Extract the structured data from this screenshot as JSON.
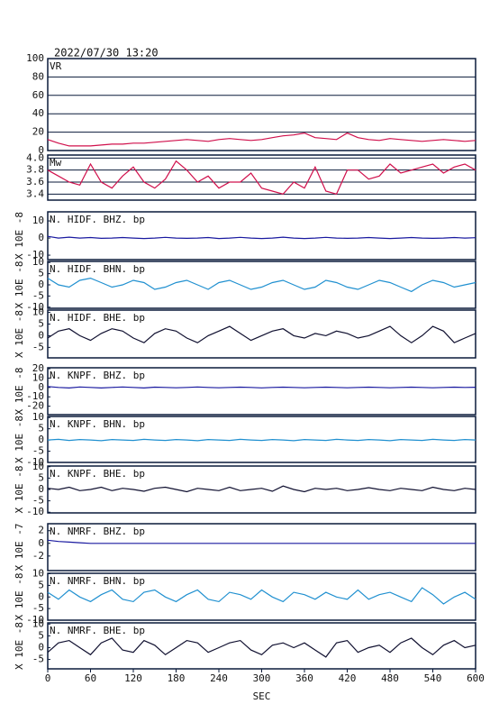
{
  "header": {
    "timestamp": "2022/07/30 13:20"
  },
  "chart_data": [
    {
      "type": "line",
      "title": "VR",
      "grid": true,
      "xlim": [
        0,
        600
      ],
      "ylim": [
        0,
        100
      ],
      "yticks": [
        0,
        20,
        40,
        60,
        80,
        100
      ],
      "x": [
        0,
        15,
        30,
        45,
        60,
        75,
        90,
        105,
        120,
        135,
        150,
        165,
        180,
        195,
        210,
        225,
        240,
        255,
        270,
        285,
        300,
        315,
        330,
        345,
        360,
        375,
        390,
        405,
        420,
        435,
        450,
        465,
        480,
        495,
        510,
        525,
        540,
        555,
        570,
        585,
        600
      ],
      "series": [
        {
          "name": "VR",
          "color": "#d0104c",
          "values": [
            12,
            8,
            5,
            5,
            5,
            6,
            7,
            7,
            8,
            8,
            9,
            10,
            11,
            12,
            11,
            10,
            12,
            13,
            12,
            11,
            12,
            14,
            16,
            17,
            19,
            14,
            13,
            12,
            19,
            14,
            12,
            11,
            13,
            12,
            11,
            10,
            11,
            12,
            11,
            10,
            11
          ]
        }
      ]
    },
    {
      "type": "line",
      "title": "Mw",
      "grid": true,
      "xlim": [
        0,
        600
      ],
      "ylim": [
        3.3,
        4.05
      ],
      "yticks": [
        {
          "value": 3.4,
          "label": "3.4"
        },
        {
          "value": 3.6,
          "label": "3.6"
        },
        {
          "value": 3.8,
          "label": "3.8"
        },
        {
          "value": 4.0,
          "label": "4.0"
        }
      ],
      "x": [
        0,
        15,
        30,
        45,
        60,
        75,
        90,
        105,
        120,
        135,
        150,
        165,
        180,
        195,
        210,
        225,
        240,
        255,
        270,
        285,
        300,
        315,
        330,
        345,
        360,
        375,
        390,
        405,
        420,
        435,
        450,
        465,
        480,
        495,
        510,
        525,
        540,
        555,
        570,
        585,
        600
      ],
      "series": [
        {
          "name": "Mw",
          "color": "#d0104c",
          "values": [
            3.8,
            3.7,
            3.6,
            3.55,
            3.9,
            3.6,
            3.5,
            3.7,
            3.85,
            3.6,
            3.5,
            3.65,
            3.95,
            3.8,
            3.6,
            3.7,
            3.5,
            3.6,
            3.6,
            3.75,
            3.5,
            3.45,
            3.4,
            3.6,
            3.5,
            3.85,
            3.45,
            3.4,
            3.8,
            3.8,
            3.65,
            3.7,
            3.9,
            3.75,
            3.8,
            3.85,
            3.9,
            3.75,
            3.85,
            3.9,
            3.8
          ]
        }
      ]
    },
    {
      "type": "line",
      "title": "N. HIDF. BHZ. bp",
      "y_label": "X 10E -8",
      "xlim": [
        0,
        600
      ],
      "ylim": [
        -12.6,
        15.3
      ],
      "yticks": [
        10,
        0,
        -10
      ],
      "x": [
        0,
        15,
        30,
        45,
        60,
        75,
        90,
        105,
        120,
        135,
        150,
        165,
        180,
        195,
        210,
        225,
        240,
        255,
        270,
        285,
        300,
        315,
        330,
        345,
        360,
        375,
        390,
        405,
        420,
        435,
        450,
        465,
        480,
        495,
        510,
        525,
        540,
        555,
        570,
        585,
        600
      ],
      "series": [
        {
          "name": "N. HIDF. BHZ. bp",
          "color": "#1a1aa0",
          "values": [
            1,
            0,
            0.5,
            0,
            0.3,
            -0.2,
            0,
            0.3,
            0,
            -0.3,
            0,
            0.4,
            0,
            -0.2,
            0,
            0.3,
            -0.3,
            0,
            0.4,
            0,
            -0.3,
            0,
            0.5,
            0,
            -0.3,
            0,
            0.4,
            0,
            -0.2,
            0,
            0.3,
            0,
            -0.3,
            0,
            0.3,
            0,
            -0.2,
            0,
            0.3,
            0,
            0.2
          ]
        }
      ]
    },
    {
      "type": "line",
      "title": "N. HIDF. BHN. bp",
      "y_label": "X 10E -8",
      "xlim": [
        0,
        600
      ],
      "ylim": [
        -10.5,
        10.5
      ],
      "yticks": [
        10,
        5,
        0,
        -5,
        -10
      ],
      "x": [
        0,
        15,
        30,
        45,
        60,
        75,
        90,
        105,
        120,
        135,
        150,
        165,
        180,
        195,
        210,
        225,
        240,
        255,
        270,
        285,
        300,
        315,
        330,
        345,
        360,
        375,
        390,
        405,
        420,
        435,
        450,
        465,
        480,
        495,
        510,
        525,
        540,
        555,
        570,
        585,
        600
      ],
      "series": [
        {
          "name": "N. HIDF. BHN. bp",
          "color": "#2090d0",
          "values": [
            3,
            0,
            -1,
            2,
            3,
            1,
            -1,
            0,
            2,
            1,
            -2,
            -1,
            1,
            2,
            0,
            -2,
            1,
            2,
            0,
            -2,
            -1,
            1,
            2,
            0,
            -2,
            -1,
            2,
            1,
            -1,
            -2,
            0,
            2,
            1,
            -1,
            -3,
            0,
            2,
            1,
            -1,
            0,
            1
          ]
        }
      ]
    },
    {
      "type": "line",
      "title": "N. HIDF. BHE. bp",
      "y_label": "X 10E -8",
      "xlim": [
        0,
        600
      ],
      "ylim": [
        -9.5,
        11
      ],
      "yticks": [
        10,
        5,
        0,
        -5
      ],
      "x": [
        0,
        15,
        30,
        45,
        60,
        75,
        90,
        105,
        120,
        135,
        150,
        165,
        180,
        195,
        210,
        225,
        240,
        255,
        270,
        285,
        300,
        315,
        330,
        345,
        360,
        375,
        390,
        405,
        420,
        435,
        450,
        465,
        480,
        495,
        510,
        525,
        540,
        555,
        570,
        585,
        600
      ],
      "series": [
        {
          "name": "N. HIDF. BHE. bp",
          "color": "#101030",
          "values": [
            -1,
            2,
            3,
            0,
            -2,
            1,
            3,
            2,
            -1,
            -3,
            1,
            3,
            2,
            -1,
            -3,
            0,
            2,
            4,
            1,
            -2,
            0,
            2,
            3,
            0,
            -1,
            1,
            0,
            2,
            1,
            -1,
            0,
            2,
            4,
            0,
            -3,
            0,
            4,
            2,
            -3,
            -1,
            1
          ]
        }
      ]
    },
    {
      "type": "line",
      "title": "N. KNPF. BHZ. bp",
      "y_label": "X 10E -8",
      "xlim": [
        0,
        600
      ],
      "ylim": [
        -29,
        21
      ],
      "yticks": [
        20,
        10,
        0,
        -10,
        -20
      ],
      "x": [
        0,
        15,
        30,
        45,
        60,
        75,
        90,
        105,
        120,
        135,
        150,
        165,
        180,
        195,
        210,
        225,
        240,
        255,
        270,
        285,
        300,
        315,
        330,
        345,
        360,
        375,
        390,
        405,
        420,
        435,
        450,
        465,
        480,
        495,
        510,
        525,
        540,
        555,
        570,
        585,
        600
      ],
      "series": [
        {
          "name": "N. KNPF. BHZ. bp",
          "color": "#1a1aa0",
          "values": [
            1,
            0,
            -0.5,
            0.5,
            0,
            -0.5,
            0,
            0.5,
            0,
            -0.5,
            0.3,
            0,
            -0.3,
            0,
            0.5,
            0,
            -0.3,
            0,
            0.3,
            0,
            -0.4,
            0,
            0.3,
            0,
            -0.3,
            0,
            0.3,
            0,
            -0.3,
            0,
            0.3,
            0,
            -0.3,
            0,
            0.3,
            0,
            -0.3,
            0,
            0.3,
            0,
            0.2
          ]
        }
      ]
    },
    {
      "type": "line",
      "title": "N. KNPF. BHN. bp",
      "y_label": "X 10E -8",
      "xlim": [
        0,
        600
      ],
      "ylim": [
        -10,
        10.5
      ],
      "yticks": [
        10,
        5,
        0,
        -5,
        -10
      ],
      "x": [
        0,
        15,
        30,
        45,
        60,
        75,
        90,
        105,
        120,
        135,
        150,
        165,
        180,
        195,
        210,
        225,
        240,
        255,
        270,
        285,
        300,
        315,
        330,
        345,
        360,
        375,
        390,
        405,
        420,
        435,
        450,
        465,
        480,
        495,
        510,
        525,
        540,
        555,
        570,
        585,
        600
      ],
      "series": [
        {
          "name": "N. KNPF. BHN. bp",
          "color": "#2090d0",
          "values": [
            0,
            0.3,
            -0.2,
            0.2,
            0,
            -0.3,
            0.2,
            0,
            -0.2,
            0.3,
            0,
            -0.2,
            0.2,
            0,
            -0.3,
            0.2,
            0,
            -0.2,
            0.3,
            0,
            -0.2,
            0.2,
            0,
            -0.3,
            0.2,
            0,
            -0.2,
            0.3,
            0,
            -0.2,
            0.2,
            0,
            -0.3,
            0.2,
            0,
            -0.2,
            0.3,
            0,
            -0.2,
            0.2,
            0
          ]
        }
      ]
    },
    {
      "type": "line",
      "title": "N. KNPF. BHE. bp",
      "y_label": "X 10E -8",
      "xlim": [
        0,
        600
      ],
      "ylim": [
        -10.3,
        10.3
      ],
      "yticks": [
        10,
        5,
        0,
        -5,
        -10
      ],
      "x": [
        0,
        15,
        30,
        45,
        60,
        75,
        90,
        105,
        120,
        135,
        150,
        165,
        180,
        195,
        210,
        225,
        240,
        255,
        270,
        285,
        300,
        315,
        330,
        345,
        360,
        375,
        390,
        405,
        420,
        435,
        450,
        465,
        480,
        495,
        510,
        525,
        540,
        555,
        570,
        585,
        600
      ],
      "series": [
        {
          "name": "N. KNPF. BHE. bp",
          "color": "#101030",
          "values": [
            0.5,
            0,
            1,
            -0.5,
            0,
            1,
            -0.5,
            0.5,
            0,
            -0.8,
            0.5,
            1,
            0,
            -1,
            0.5,
            0,
            -0.5,
            1,
            -0.5,
            0,
            0.5,
            -0.8,
            1.5,
            0,
            -1,
            0.5,
            0,
            0.5,
            -0.5,
            0,
            0.8,
            0,
            -0.5,
            0.5,
            0,
            -0.5,
            1,
            0,
            -0.5,
            0.5,
            0
          ]
        }
      ]
    },
    {
      "type": "line",
      "title": "N. NMRF. BHZ. bp",
      "y_label": "X 10E -7",
      "xlim": [
        0,
        600
      ],
      "ylim": [
        -4.3,
        3.1
      ],
      "yticks": [
        2,
        0,
        -2
      ],
      "x": [
        0,
        15,
        30,
        45,
        60,
        75,
        90,
        105,
        120,
        135,
        150,
        165,
        180,
        195,
        210,
        225,
        240,
        255,
        270,
        285,
        300,
        315,
        330,
        345,
        360,
        375,
        390,
        405,
        420,
        435,
        450,
        465,
        480,
        495,
        510,
        525,
        540,
        555,
        570,
        585,
        600
      ],
      "series": [
        {
          "name": "N. NMRF. BHZ. bp",
          "color": "#1a1aa0",
          "values": [
            0.5,
            0.3,
            0.2,
            0.1,
            0,
            0,
            0,
            0,
            0,
            0,
            0,
            0,
            0,
            0,
            0,
            0,
            0,
            0,
            0,
            0,
            0,
            0,
            0,
            0,
            0,
            0,
            0,
            0,
            0,
            0,
            0,
            0,
            0,
            0,
            0,
            0,
            0,
            0,
            0,
            0,
            0
          ]
        }
      ]
    },
    {
      "type": "line",
      "title": "N. NMRF. BHN. bp",
      "y_label": "X 10E -8",
      "xlim": [
        0,
        600
      ],
      "ylim": [
        -10,
        10.2
      ],
      "yticks": [
        10,
        5,
        0,
        -5,
        -10
      ],
      "x": [
        0,
        15,
        30,
        45,
        60,
        75,
        90,
        105,
        120,
        135,
        150,
        165,
        180,
        195,
        210,
        225,
        240,
        255,
        270,
        285,
        300,
        315,
        330,
        345,
        360,
        375,
        390,
        405,
        420,
        435,
        450,
        465,
        480,
        495,
        510,
        525,
        540,
        555,
        570,
        585,
        600
      ],
      "series": [
        {
          "name": "N. NMRF. BHN. bp",
          "color": "#2090d0",
          "values": [
            2,
            -1,
            3,
            0,
            -2,
            1,
            3,
            -1,
            -2,
            2,
            3,
            0,
            -2,
            1,
            3,
            -1,
            -2,
            2,
            1,
            -1,
            3,
            0,
            -2,
            2,
            1,
            -1,
            2,
            0,
            -1,
            3,
            -1,
            1,
            2,
            0,
            -2,
            4,
            1,
            -3,
            0,
            2,
            -1
          ]
        }
      ]
    },
    {
      "type": "line",
      "title": "N. NMRF. BHE. bp",
      "y_label": "X 10E -8",
      "x_label": "SEC",
      "xlim": [
        0,
        600
      ],
      "xticks": [
        0,
        60,
        120,
        180,
        240,
        300,
        360,
        420,
        480,
        540,
        600
      ],
      "ylim": [
        -9,
        10.5
      ],
      "yticks": [
        10,
        5,
        0,
        -5
      ],
      "x": [
        0,
        15,
        30,
        45,
        60,
        75,
        90,
        105,
        120,
        135,
        150,
        165,
        180,
        195,
        210,
        225,
        240,
        255,
        270,
        285,
        300,
        315,
        330,
        345,
        360,
        375,
        390,
        405,
        420,
        435,
        450,
        465,
        480,
        495,
        510,
        525,
        540,
        555,
        570,
        585,
        600
      ],
      "series": [
        {
          "name": "N. NMRF. BHE. bp",
          "color": "#101030",
          "values": [
            -2,
            2,
            3,
            0,
            -3,
            2,
            4,
            -1,
            -2,
            3,
            1,
            -3,
            0,
            3,
            2,
            -2,
            0,
            2,
            3,
            -1,
            -3,
            1,
            2,
            0,
            2,
            -1,
            -4,
            2,
            3,
            -2,
            0,
            1,
            -2,
            2,
            4,
            0,
            -3,
            1,
            3,
            0,
            1
          ]
        }
      ]
    }
  ]
}
